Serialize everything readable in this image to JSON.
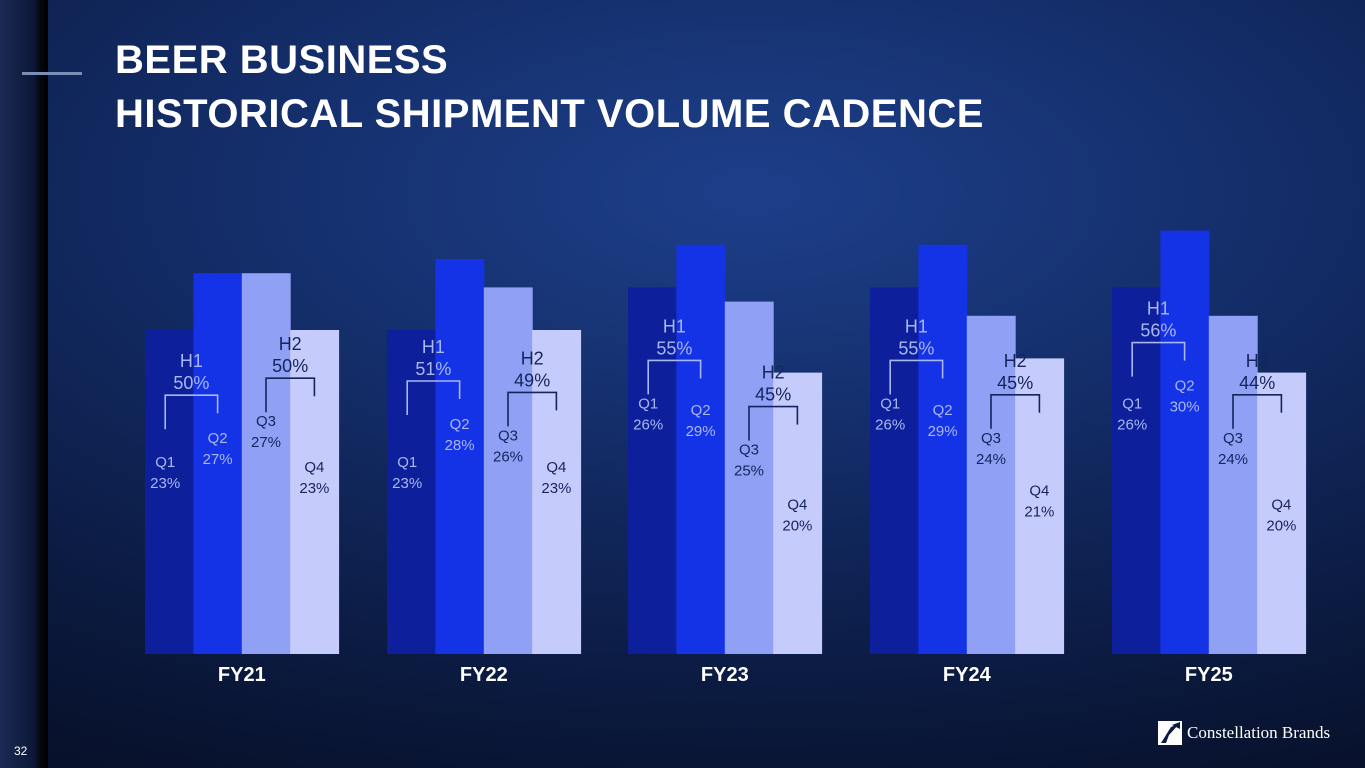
{
  "title": {
    "line1": "BEER BUSINESS",
    "line2": "HISTORICAL SHIPMENT VOLUME CADENCE"
  },
  "page_number": "32",
  "logo": {
    "text": "Constellation Brands",
    "icon": "constellation-brands-mark-icon"
  },
  "colors": {
    "q1": "#0d1f9a",
    "q2": "#1432e6",
    "q3": "#8fa0f5",
    "q4": "#c5ccfb",
    "label_dark_bg": "#a9b8f2",
    "label_light_bg": "#16245e"
  },
  "chart_data": {
    "type": "bar",
    "series_names": [
      "Q1",
      "Q2",
      "Q3",
      "Q4"
    ],
    "half_names": [
      "H1",
      "H2"
    ],
    "groups": [
      {
        "name": "FY21",
        "quarters": [
          23,
          27,
          27,
          23
        ],
        "halves": [
          50,
          50
        ]
      },
      {
        "name": "FY22",
        "quarters": [
          23,
          28,
          26,
          23
        ],
        "halves": [
          51,
          49
        ]
      },
      {
        "name": "FY23",
        "quarters": [
          26,
          29,
          25,
          20
        ],
        "halves": [
          55,
          45
        ]
      },
      {
        "name": "FY24",
        "quarters": [
          26,
          29,
          24,
          21
        ],
        "halves": [
          55,
          45
        ]
      },
      {
        "name": "FY25",
        "quarters": [
          26,
          30,
          24,
          20
        ],
        "halves": [
          56,
          44
        ]
      }
    ],
    "value_suffix": "%"
  }
}
